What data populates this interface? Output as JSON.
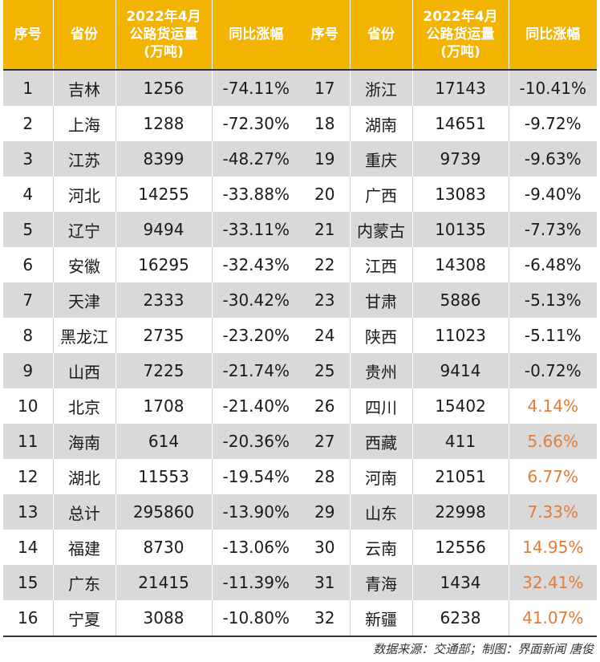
{
  "headers": {
    "index": "序号",
    "province": "省份",
    "volume_line1": "2022年4月",
    "volume_line2": "公路货运量",
    "volume_line3": "(万吨)",
    "change": "同比涨幅"
  },
  "left_rows": [
    {
      "no": "1",
      "province": "吉林",
      "volume": "1256",
      "change": "-74.11%"
    },
    {
      "no": "2",
      "province": "上海",
      "volume": "1288",
      "change": "-72.30%"
    },
    {
      "no": "3",
      "province": "江苏",
      "volume": "8399",
      "change": "-48.27%"
    },
    {
      "no": "4",
      "province": "河北",
      "volume": "14255",
      "change": "-33.88%"
    },
    {
      "no": "5",
      "province": "辽宁",
      "volume": "9494",
      "change": "-33.11%"
    },
    {
      "no": "6",
      "province": "安徽",
      "volume": "16295",
      "change": "-32.43%"
    },
    {
      "no": "7",
      "province": "天津",
      "volume": "2333",
      "change": "-30.42%"
    },
    {
      "no": "8",
      "province": "黑龙江",
      "volume": "2735",
      "change": "-23.20%"
    },
    {
      "no": "9",
      "province": "山西",
      "volume": "7225",
      "change": "-21.74%"
    },
    {
      "no": "10",
      "province": "北京",
      "volume": "1708",
      "change": "-21.40%"
    },
    {
      "no": "11",
      "province": "海南",
      "volume": "614",
      "change": "-20.36%"
    },
    {
      "no": "12",
      "province": "湖北",
      "volume": "11553",
      "change": "-19.54%"
    },
    {
      "no": "13",
      "province": "总计",
      "volume": "295860",
      "change": "-13.90%"
    },
    {
      "no": "14",
      "province": "福建",
      "volume": "8730",
      "change": "-13.06%"
    },
    {
      "no": "15",
      "province": "广东",
      "volume": "21415",
      "change": "-11.39%"
    },
    {
      "no": "16",
      "province": "宁夏",
      "volume": "3088",
      "change": "-10.80%"
    }
  ],
  "right_rows": [
    {
      "no": "17",
      "province": "浙江",
      "volume": "17143",
      "change": "-10.41%"
    },
    {
      "no": "18",
      "province": "湖南",
      "volume": "14651",
      "change": "-9.72%"
    },
    {
      "no": "19",
      "province": "重庆",
      "volume": "9739",
      "change": "-9.63%"
    },
    {
      "no": "20",
      "province": "广西",
      "volume": "13083",
      "change": "-9.40%"
    },
    {
      "no": "21",
      "province": "内蒙古",
      "volume": "10135",
      "change": "-7.73%"
    },
    {
      "no": "22",
      "province": "江西",
      "volume": "14308",
      "change": "-6.48%"
    },
    {
      "no": "23",
      "province": "甘肃",
      "volume": "5886",
      "change": "-5.13%"
    },
    {
      "no": "24",
      "province": "陕西",
      "volume": "11023",
      "change": "-5.11%"
    },
    {
      "no": "25",
      "province": "贵州",
      "volume": "9414",
      "change": "-0.72%"
    },
    {
      "no": "26",
      "province": "四川",
      "volume": "15402",
      "change": "4.14%"
    },
    {
      "no": "27",
      "province": "西藏",
      "volume": "411",
      "change": "5.66%"
    },
    {
      "no": "28",
      "province": "河南",
      "volume": "21051",
      "change": "6.77%"
    },
    {
      "no": "29",
      "province": "山东",
      "volume": "22998",
      "change": "7.33%"
    },
    {
      "no": "30",
      "province": "云南",
      "volume": "12556",
      "change": "14.95%"
    },
    {
      "no": "31",
      "province": "青海",
      "volume": "1434",
      "change": "32.41%"
    },
    {
      "no": "32",
      "province": "新疆",
      "volume": "6238",
      "change": "41.07%"
    }
  ],
  "colors": {
    "header_bg": "#f2b400",
    "positive_change": "#e07b39",
    "stripe": "#d9d9d9"
  },
  "source": "数据来源：交通部；制图：界面新闻 唐俊"
}
